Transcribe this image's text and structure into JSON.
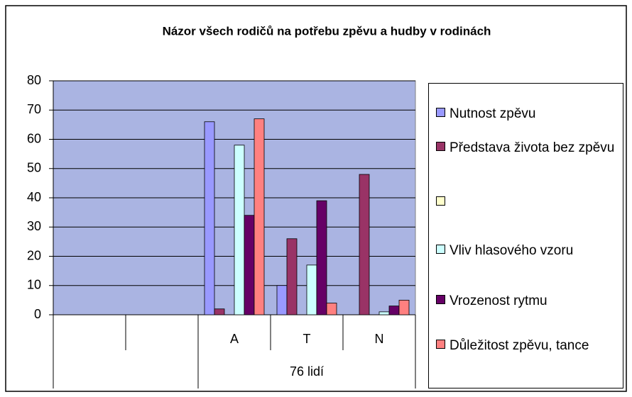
{
  "chart_data": {
    "type": "bar",
    "title": "Názor všech rodičů na potřebu zpěvu a hudby v rodinách",
    "categories": [
      null,
      null,
      "A",
      "T",
      "N"
    ],
    "category_group": "76 lidí",
    "series": [
      {
        "name": "Nutnost zpěvu",
        "color": "#9999ff",
        "values": [
          null,
          null,
          66,
          10,
          0
        ]
      },
      {
        "name": "Představa života bez zpěvu",
        "color": "#993366",
        "values": [
          null,
          null,
          2,
          26,
          48
        ]
      },
      {
        "name": null,
        "color": "#ffffcc",
        "values": [
          null,
          null,
          null,
          null,
          null
        ]
      },
      {
        "name": "Vliv hlasového vzoru",
        "color": "#ccffff",
        "values": [
          null,
          null,
          58,
          17,
          1
        ]
      },
      {
        "name": "Vrozenost rytmu",
        "color": "#660066",
        "values": [
          null,
          null,
          34,
          39,
          3
        ]
      },
      {
        "name": "Důležitost zpěvu, tance",
        "color": "#ff8080",
        "values": [
          null,
          null,
          67,
          4,
          5
        ]
      }
    ],
    "ylim": [
      0,
      80
    ],
    "yticks": [
      0,
      10,
      20,
      30,
      40,
      50,
      60,
      70,
      80
    ],
    "grid": true,
    "legend": "right"
  }
}
